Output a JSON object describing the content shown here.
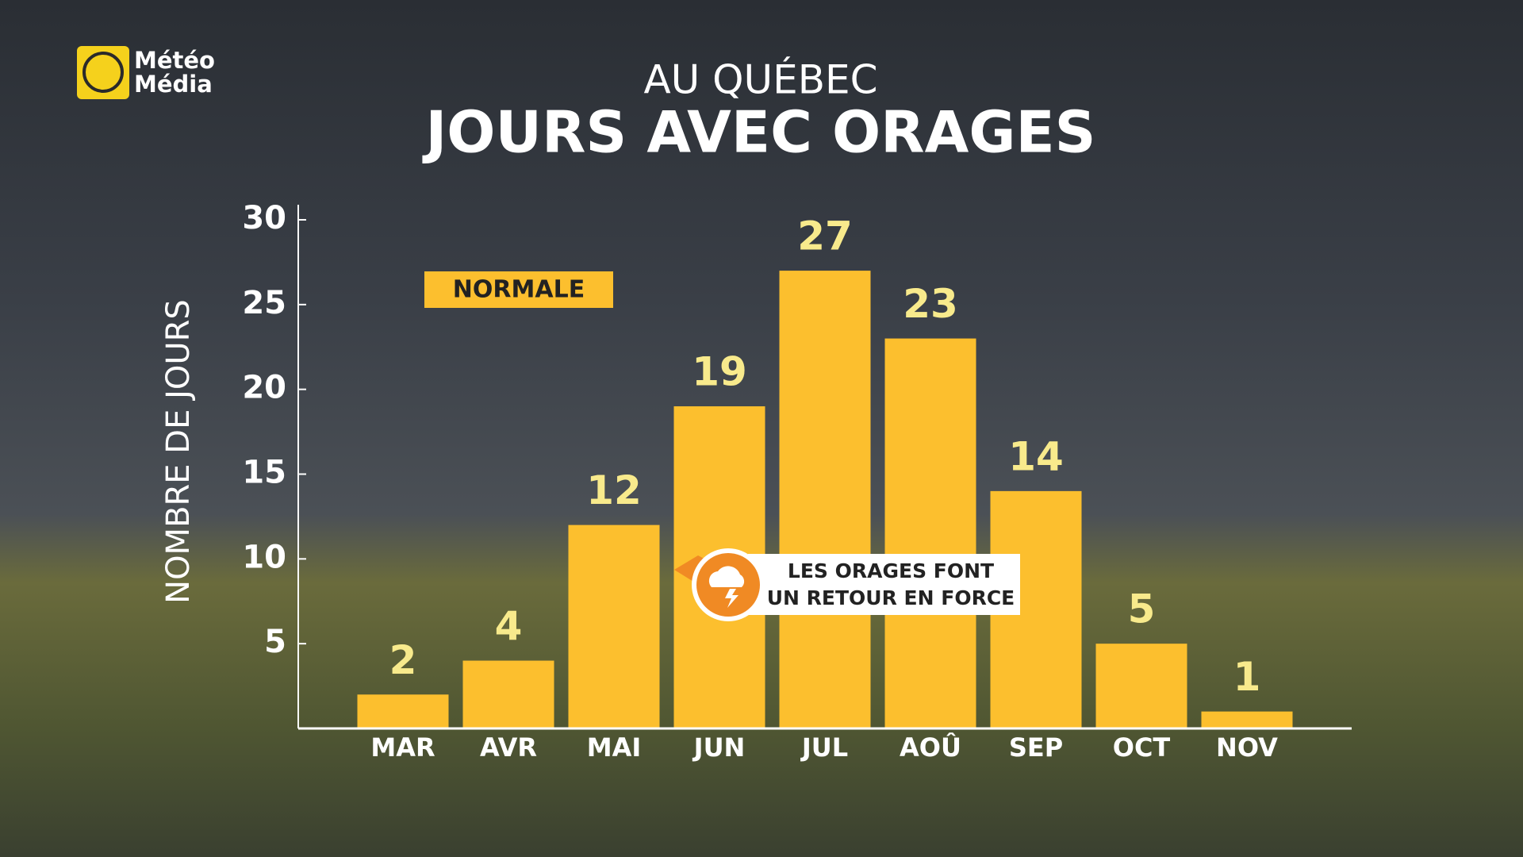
{
  "logo": {
    "line1": "Météo",
    "line2": "Média"
  },
  "chart_data": {
    "type": "bar",
    "subtitle": "AU QUÉBEC",
    "title": "JOURS AVEC ORAGES",
    "y_label": "NOMBRE DE JOURS",
    "categories": [
      "MAR",
      "AVR",
      "MAI",
      "JUN",
      "JUL",
      "AOÛ",
      "SEP",
      "OCT",
      "NOV"
    ],
    "series": [
      {
        "name": "NORMALE",
        "color": "#fcbf2e",
        "values": [
          2,
          4,
          12,
          19,
          27,
          23,
          14,
          5,
          1
        ]
      }
    ],
    "ylim": [
      0,
      30
    ],
    "yticks": [
      5,
      10,
      15,
      20,
      25,
      30
    ],
    "grid": false,
    "annotation": [
      "LES ORAGES FONT",
      "UN RETOUR EN FORCE"
    ]
  }
}
